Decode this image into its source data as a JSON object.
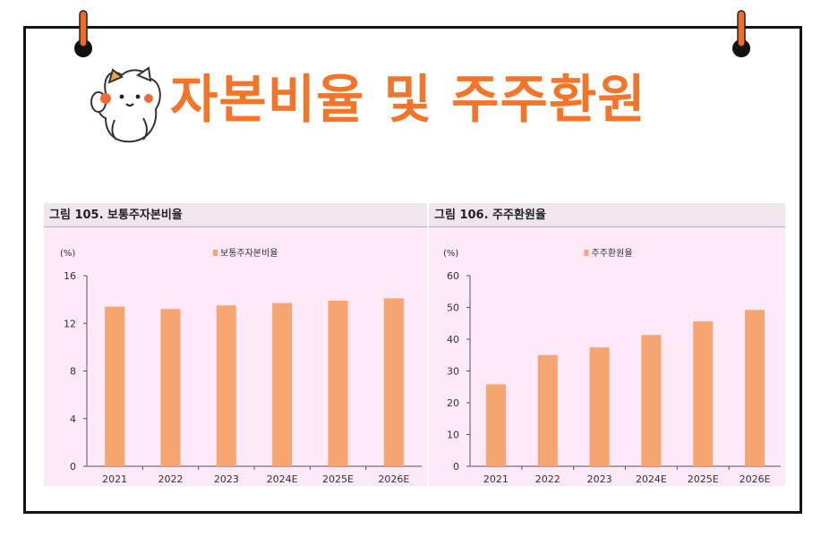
{
  "header": {
    "title": "자본비율 및 주주환원"
  },
  "colors": {
    "accent": "#f4752a",
    "bar": "#f6a470",
    "panel_bg": "#fde9f8",
    "figure_head_bg": "#efe6ee"
  },
  "chart_data": [
    {
      "type": "bar",
      "figure_label": "그림 105. 보통주자본비율",
      "unit": "(%)",
      "categories": [
        "2021",
        "2022",
        "2023",
        "2024E",
        "2025E",
        "2026E"
      ],
      "series": [
        {
          "name": "보통주자본비율",
          "values": [
            13.4,
            13.2,
            13.5,
            13.7,
            13.9,
            14.1
          ]
        }
      ],
      "ylim": [
        0,
        16
      ],
      "yticks": [
        0,
        4,
        8,
        12,
        16
      ],
      "legend": "top-center",
      "grid": false
    },
    {
      "type": "bar",
      "figure_label": "그림 106. 주주환원율",
      "unit": "(%)",
      "categories": [
        "2021",
        "2022",
        "2023",
        "2024E",
        "2025E",
        "2026E"
      ],
      "series": [
        {
          "name": "주주환원율",
          "values": [
            25.8,
            35.0,
            37.4,
            41.3,
            45.6,
            49.2
          ]
        }
      ],
      "ylim": [
        0,
        60
      ],
      "yticks": [
        0,
        10,
        20,
        30,
        40,
        50,
        60
      ],
      "legend": "top-center",
      "grid": false
    }
  ]
}
